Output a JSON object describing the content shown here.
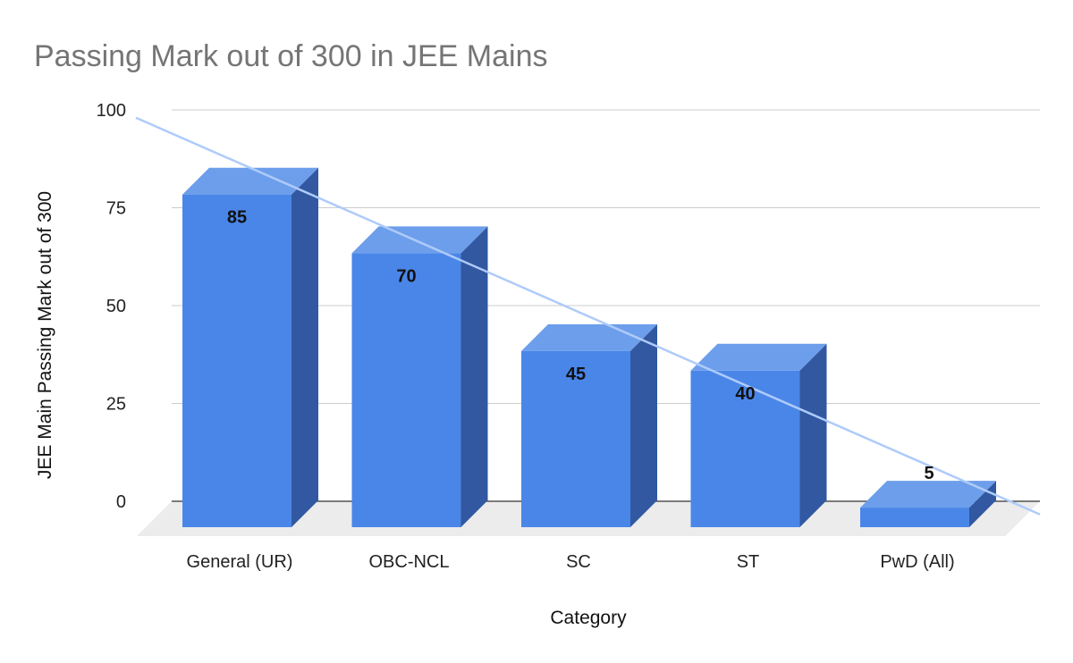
{
  "chart_data": {
    "type": "bar",
    "style": "3d-column",
    "title": "Passing Mark out of 300 in JEE Mains",
    "xlabel": "Category",
    "ylabel": "JEE Main Passing Mark out of 300",
    "categories": [
      "General (UR)",
      "OBC-NCL",
      "SC",
      "ST",
      "PwD (All)"
    ],
    "values": [
      85,
      70,
      45,
      40,
      5
    ],
    "data_labels": [
      "85",
      "70",
      "45",
      "40",
      "5"
    ],
    "ylim": [
      0,
      100
    ],
    "yticks": [
      "0",
      "25",
      "50",
      "75",
      "100"
    ],
    "grid": true,
    "legend": "none",
    "trendline": {
      "type": "linear",
      "color": "#aecbfa"
    },
    "colors": {
      "bar_front": "#4a86e8",
      "bar_top": "#6d9eeb",
      "bar_side": "#3158a0",
      "gridline": "#cccccc",
      "floor": "#ececec",
      "title": "#757575"
    }
  }
}
